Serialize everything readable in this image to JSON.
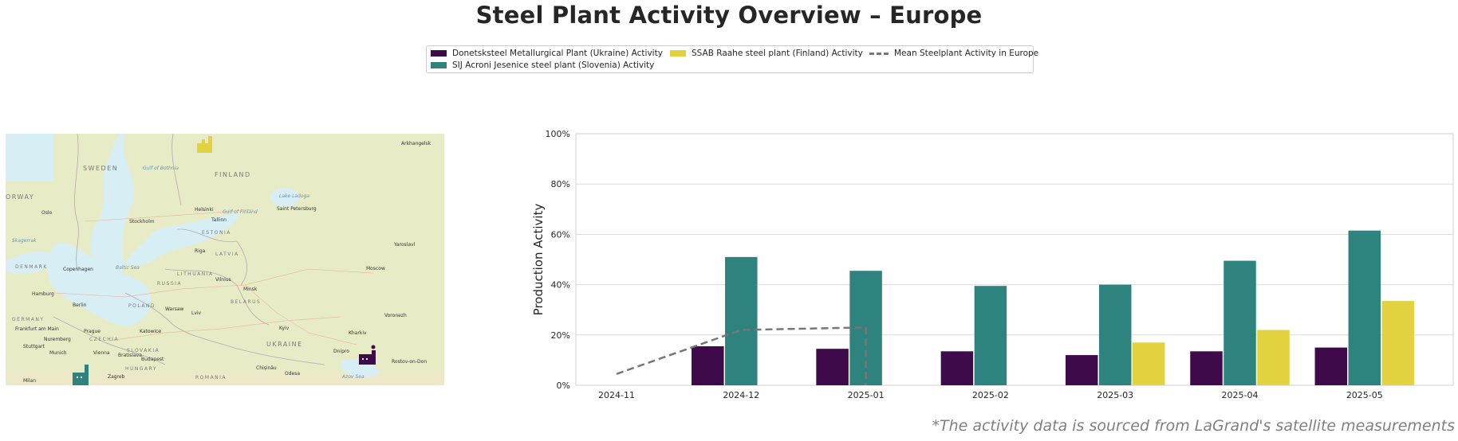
{
  "page": {
    "title": "Steel Plant Activity Overview – Europe",
    "footnote": "*The activity data is sourced from LaGrand's satellite measurements"
  },
  "legend": {
    "items": [
      {
        "label": "Donetsksteel Metallurgical Plant (Ukraine) Activity",
        "color": "#3f0a49",
        "kind": "bar"
      },
      {
        "label": "SIJ Acroni Jesenice steel plant (Slovenia) Activity",
        "color": "#2e837f",
        "kind": "bar"
      },
      {
        "label": "SSAB Raahe steel plant (Finland) Activity",
        "color": "#e2d23f",
        "kind": "bar"
      },
      {
        "label": "Mean Steelplant Activity in Europe",
        "color": "#777777",
        "kind": "dashed-line"
      }
    ]
  },
  "map": {
    "labels": {
      "sweden": "SWEDEN",
      "finland": "FINLAND",
      "norway": "ORWAY",
      "estonia": "ESTONIA",
      "latvia": "LATVIA",
      "lithuania": "LITHUANIA",
      "russia": "RUSSIA",
      "belarus": "BELARUS",
      "poland": "POLAND",
      "germany": "GERMANY",
      "czechia": "CZECHIA",
      "slovakia": "SLOVAKIA",
      "hungary": "HUNGARY",
      "romania": "ROMANIA",
      "ukraine": "UKRAINE",
      "denmark": "DENMARK",
      "oslo": "Oslo",
      "stockholm": "Stockholm",
      "helsinki": "Helsinki",
      "tallinn": "Tallinn",
      "saint_petersburg": "Saint Petersburg",
      "riga": "Riga",
      "copenhagen": "Copenhagen",
      "hamburg": "Hamburg",
      "berlin": "Berlin",
      "warsaw": "Warsaw",
      "vilnius": "Vilnius",
      "minsk": "Minsk",
      "moscow": "Moscow",
      "yaroslavl": "Yaroslavl",
      "prague": "Prague",
      "kyiv": "Kyiv",
      "kharkiv": "Kharkiv",
      "voronezh": "Voronezh",
      "dnipro": "Dnipro",
      "vienna": "Vienna",
      "munich": "Munich",
      "budapest": "Budapest",
      "zagreb": "Zagreb",
      "odesa": "Odesa",
      "rostov": "Rostov-on-Don",
      "arkhangelsk": "Arkhangelsk",
      "baltic_sea": "Baltic Sea",
      "gulf_bothnia": "Gulf of Bothnia",
      "gulf_finland": "Gulf of Finland",
      "azov_sea": "Azov Sea",
      "lviv": "Lviv",
      "katowice": "Katowice",
      "bratislava": "Bratislava",
      "chisinau": "Chișinău",
      "nuremberg": "Nuremberg",
      "stuttgart": "Stuttgart",
      "frankfurt": "Frankfurt am Main",
      "skagerrak": "Skagerrak",
      "lake_ladoga": "Lake Ladoga",
      "milan": "Milan"
    }
  },
  "chart_data": {
    "type": "bar",
    "categories": [
      "2024-11",
      "2024-12",
      "2025-01",
      "2025-02",
      "2025-03",
      "2025-04",
      "2025-05"
    ],
    "series": [
      {
        "name": "Donetsksteel Metallurgical Plant (Ukraine) Activity",
        "color": "#3f0a49",
        "values": [
          null,
          15.5,
          14.5,
          13.5,
          12,
          13.5,
          15
        ]
      },
      {
        "name": "SIJ Acroni Jesenice steel plant (Slovenia) Activity",
        "color": "#2e837f",
        "values": [
          null,
          51,
          45.5,
          39.5,
          40,
          49.5,
          61.5
        ]
      },
      {
        "name": "SSAB Raahe steel plant (Finland) Activity",
        "color": "#e2d23f",
        "values": [
          null,
          null,
          null,
          null,
          17,
          22,
          33.5
        ]
      }
    ],
    "line": {
      "name": "Mean Steelplant Activity in Europe",
      "color": "#777777",
      "style": "dashed",
      "points": [
        [
          "2024-11",
          4.5
        ],
        [
          "2024-12",
          22
        ],
        [
          "2025-01",
          23
        ],
        [
          "2025-01",
          0
        ]
      ]
    },
    "ylabel": "Production Activity",
    "xlabel": "",
    "ylim": [
      0,
      100
    ],
    "yticks": [
      "0%",
      "20%",
      "40%",
      "60%",
      "80%",
      "100%"
    ],
    "grid": true
  }
}
